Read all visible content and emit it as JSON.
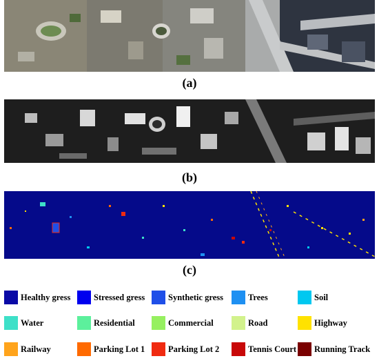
{
  "figure": {
    "captions": {
      "a": "(a)",
      "b": "(b)",
      "c": "(c)"
    },
    "legend": [
      {
        "label": "Healthy gress",
        "color": "#0a0aa6"
      },
      {
        "label": "Stressed gress",
        "color": "#0000ee"
      },
      {
        "label": "Synthetic gress",
        "color": "#1f4fe8"
      },
      {
        "label": "Trees",
        "color": "#1e90f2"
      },
      {
        "label": "Soil",
        "color": "#00c8f0"
      },
      {
        "label": "Water",
        "color": "#3ee0c8"
      },
      {
        "label": "Residential",
        "color": "#5cf09c"
      },
      {
        "label": "Commercial",
        "color": "#96f060"
      },
      {
        "label": "Road",
        "color": "#d2f28c"
      },
      {
        "label": "Highway",
        "color": "#ffe200"
      },
      {
        "label": "Railway",
        "color": "#ffa41c"
      },
      {
        "label": "Parking Lot 1",
        "color": "#ff6a00"
      },
      {
        "label": "Parking Lot 2",
        "color": "#f02a10"
      },
      {
        "label": "Tennis Court",
        "color": "#c80808"
      },
      {
        "label": "Running Track",
        "color": "#7a0000"
      }
    ]
  }
}
